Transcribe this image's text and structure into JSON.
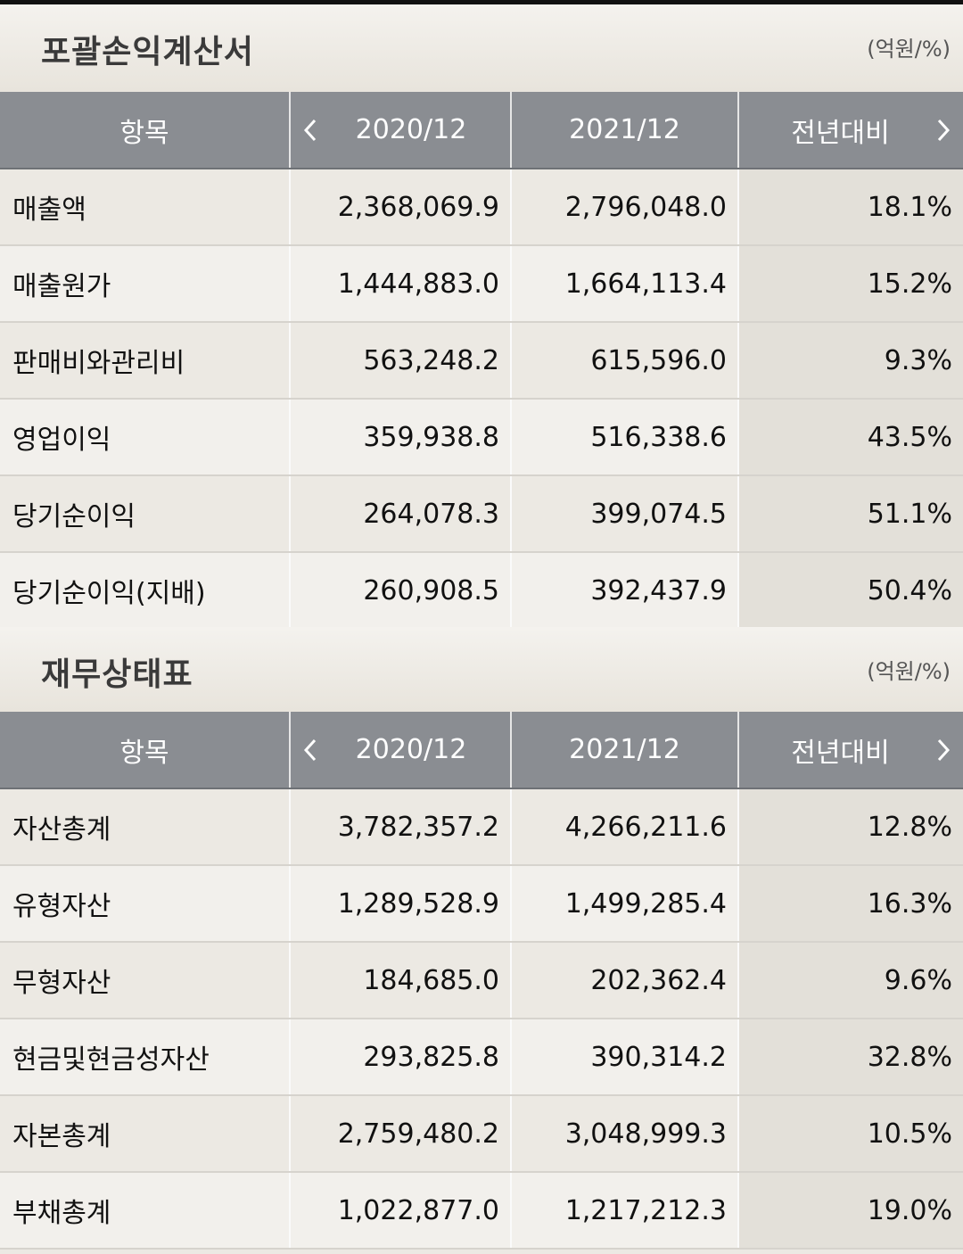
{
  "sections": [
    {
      "title": "포괄손익계산서",
      "unit": "(억원/%)",
      "headers": {
        "item": "항목",
        "prev_period": "2020/12",
        "curr_period": "2021/12",
        "change": "전년대비"
      },
      "rows": [
        {
          "label": "매출액",
          "v2020": "2,368,069.9",
          "v2021": "2,796,048.0",
          "chg": "18.1%"
        },
        {
          "label": "매출원가",
          "v2020": "1,444,883.0",
          "v2021": "1,664,113.4",
          "chg": "15.2%"
        },
        {
          "label": "판매비와관리비",
          "v2020": "563,248.2",
          "v2021": "615,596.0",
          "chg": "9.3%"
        },
        {
          "label": "영업이익",
          "v2020": "359,938.8",
          "v2021": "516,338.6",
          "chg": "43.5%"
        },
        {
          "label": "당기순이익",
          "v2020": "264,078.3",
          "v2021": "399,074.5",
          "chg": "51.1%"
        },
        {
          "label": "당기순이익(지배)",
          "v2020": "260,908.5",
          "v2021": "392,437.9",
          "chg": "50.4%"
        }
      ]
    },
    {
      "title": "재무상태표",
      "unit": "(억원/%)",
      "headers": {
        "item": "항목",
        "prev_period": "2020/12",
        "curr_period": "2021/12",
        "change": "전년대비"
      },
      "rows": [
        {
          "label": "자산총계",
          "v2020": "3,782,357.2",
          "v2021": "4,266,211.6",
          "chg": "12.8%"
        },
        {
          "label": "유형자산",
          "v2020": "1,289,528.9",
          "v2021": "1,499,285.4",
          "chg": "16.3%"
        },
        {
          "label": "무형자산",
          "v2020": "184,685.0",
          "v2021": "202,362.4",
          "chg": "9.6%"
        },
        {
          "label": "현금및현금성자산",
          "v2020": "293,825.8",
          "v2021": "390,314.2",
          "chg": "32.8%"
        },
        {
          "label": "자본총계",
          "v2020": "2,759,480.2",
          "v2021": "3,048,999.3",
          "chg": "10.5%"
        },
        {
          "label": "부채총계",
          "v2020": "1,022,877.0",
          "v2021": "1,217,212.3",
          "chg": "19.0%"
        }
      ]
    }
  ],
  "icons": {
    "prev": "chevron-left-icon",
    "next": "chevron-right-icon"
  },
  "colors": {
    "header_bg": "#8a8d92",
    "page_bg": "#ece9e3"
  }
}
